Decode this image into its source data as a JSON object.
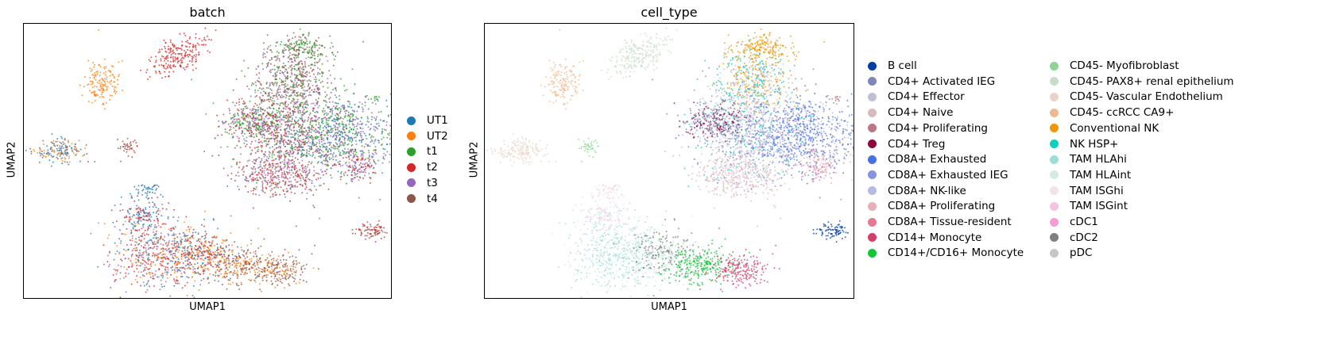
{
  "chart_data": [
    {
      "type": "scatter",
      "title": "batch",
      "xlabel": "UMAP1",
      "ylabel": "UMAP2",
      "legend_position": "right",
      "series": [
        {
          "name": "UT1",
          "color": "#1f77b4"
        },
        {
          "name": "UT2",
          "color": "#ff7f0e"
        },
        {
          "name": "t1",
          "color": "#2ca02c"
        },
        {
          "name": "t2",
          "color": "#d62728"
        },
        {
          "name": "t3",
          "color": "#9467bd"
        },
        {
          "name": "t4",
          "color": "#8c564b"
        }
      ]
    },
    {
      "type": "scatter",
      "title": "cell_type",
      "xlabel": "UMAP1",
      "ylabel": "UMAP2",
      "legend_position": "right",
      "legend_columns": 2,
      "series": [
        {
          "name": "B cell",
          "color": "#023fa5"
        },
        {
          "name": "CD4+ Activated IEG",
          "color": "#7d87b9"
        },
        {
          "name": "CD4+ Effector",
          "color": "#bec1d4"
        },
        {
          "name": "CD4+ Naive",
          "color": "#d6bcc0"
        },
        {
          "name": "CD4+ Proliferating",
          "color": "#bb7784"
        },
        {
          "name": "CD4+ Treg",
          "color": "#8e063b"
        },
        {
          "name": "CD8A+ Exhausted",
          "color": "#4a6fe3"
        },
        {
          "name": "CD8A+ Exhausted IEG",
          "color": "#8595e1"
        },
        {
          "name": "CD8A+ NK-like",
          "color": "#b5bbe3"
        },
        {
          "name": "CD8A+ Proliferating",
          "color": "#e6afb9"
        },
        {
          "name": "CD8A+ Tissue-resident",
          "color": "#e07b91"
        },
        {
          "name": "CD14+ Monocyte",
          "color": "#d33f6a"
        },
        {
          "name": "CD14+/CD16+ Monocyte",
          "color": "#11c638"
        },
        {
          "name": "CD45- Myofibroblast",
          "color": "#8dd593"
        },
        {
          "name": "CD45- PAX8+ renal epithelium",
          "color": "#c6dec7"
        },
        {
          "name": "CD45- Vascular Endothelium",
          "color": "#ead3c6"
        },
        {
          "name": "CD45- ccRCC CA9+",
          "color": "#f0b98d"
        },
        {
          "name": "Conventional NK",
          "color": "#ef9708"
        },
        {
          "name": "NK HSP+",
          "color": "#0fcfc0"
        },
        {
          "name": "TAM HLAhi",
          "color": "#9cded6"
        },
        {
          "name": "TAM HLAint",
          "color": "#d5eae7"
        },
        {
          "name": "TAM ISGhi",
          "color": "#f3e1eb"
        },
        {
          "name": "TAM ISGint",
          "color": "#f6c4e1"
        },
        {
          "name": "cDC1",
          "color": "#f79cd4"
        },
        {
          "name": "cDC2",
          "color": "#7f7f7f"
        },
        {
          "name": "pDC",
          "color": "#c7c7c7"
        }
      ]
    }
  ]
}
